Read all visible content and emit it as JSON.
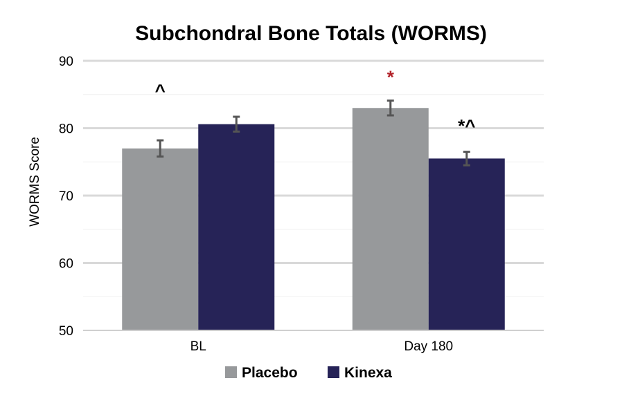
{
  "chart_data": {
    "type": "bar",
    "title": "Subchondral Bone Totals (WORMS)",
    "xlabel": "",
    "ylabel": "WORMS Score",
    "ylim": [
      50,
      90
    ],
    "yticks": [
      "50",
      "60",
      "70",
      "80",
      "90"
    ],
    "categories": [
      "BL",
      "Day 180"
    ],
    "series": [
      {
        "name": "Placebo",
        "color": "#97999b",
        "values": [
          77.0,
          83.0
        ],
        "error": [
          1.2,
          1.1
        ]
      },
      {
        "name": "Kinexa",
        "color": "#262357",
        "values": [
          80.6,
          75.5
        ],
        "error": [
          1.1,
          1.0
        ]
      }
    ],
    "annotations": [
      {
        "text": "^",
        "category": 0,
        "series": 0,
        "value": 86.5,
        "color": "#000000"
      },
      {
        "text": "*",
        "category": 1,
        "series": 0,
        "value": 88.5,
        "color": "#b22229"
      },
      {
        "text": "*^",
        "category": 1,
        "series": 1,
        "value": 81.3,
        "color": "#000000"
      }
    ],
    "grid": true,
    "legend": "bottom"
  }
}
